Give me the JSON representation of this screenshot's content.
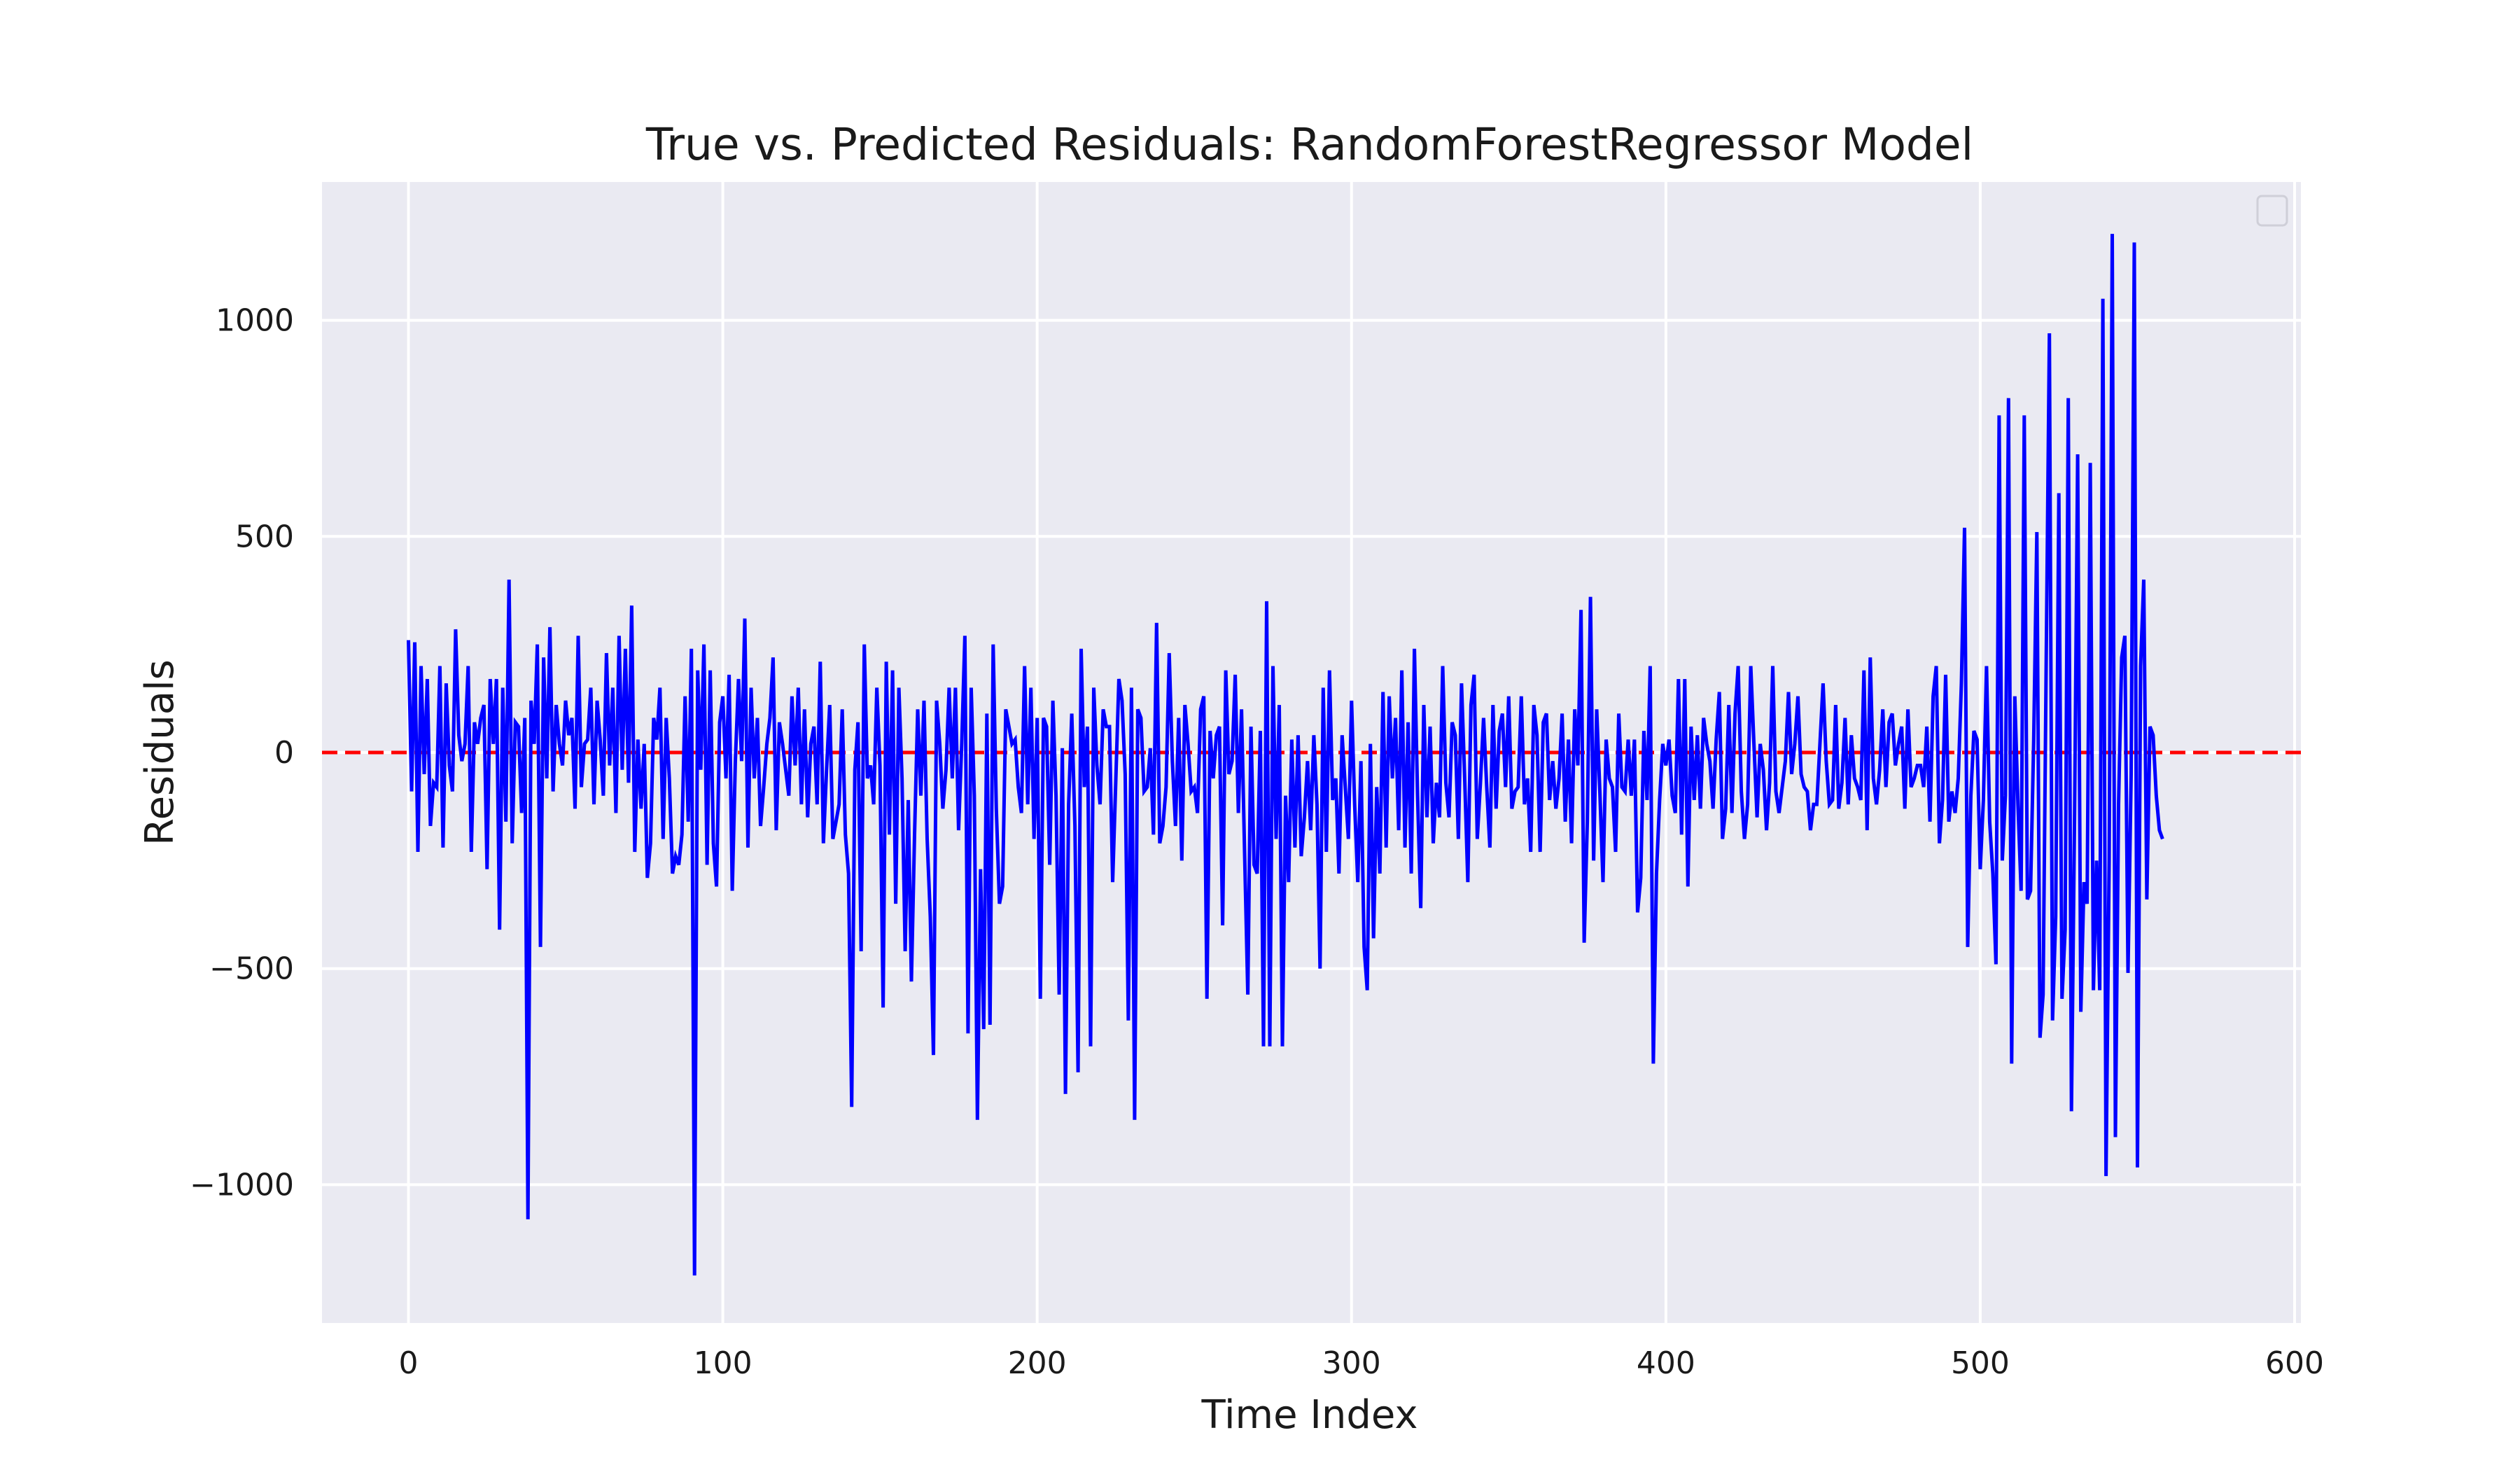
{
  "chart_data": {
    "type": "line",
    "title": "True vs. Predicted Residuals: RandomForestRegressor Model",
    "xlabel": "Time Index",
    "ylabel": "Residuals",
    "xlim": [
      -27.5,
      602
    ],
    "ylim": [
      -1320,
      1320
    ],
    "xticks": [
      0,
      100,
      200,
      300,
      400,
      500,
      600
    ],
    "yticks": [
      -1000,
      -500,
      0,
      500,
      1000
    ],
    "xtick_labels": [
      "0",
      "100",
      "200",
      "300",
      "400",
      "500",
      "600"
    ],
    "ytick_labels": [
      "−1000",
      "−500",
      "0",
      "500",
      "1000"
    ],
    "grid": true,
    "legend": "top-right (empty)",
    "colors": {
      "background": "#eaeaf2",
      "grid": "#ffffff",
      "series": "#0000ff",
      "reference": "#ff0000"
    },
    "reference_line": {
      "y": 0,
      "style": "dashed"
    },
    "series": [
      {
        "values": [
          260,
          -90,
          255,
          -230,
          200,
          -50,
          170,
          -170,
          -70,
          -80,
          200,
          -220,
          160,
          -30,
          -90,
          285,
          40,
          -20,
          20,
          200,
          -230,
          70,
          20,
          80,
          110,
          -270,
          170,
          20,
          170,
          -410,
          150,
          -160,
          400,
          -210,
          70,
          60,
          -140,
          80,
          -1080,
          120,
          20,
          250,
          -450,
          220,
          -60,
          290,
          -90,
          110,
          20,
          -30,
          120,
          40,
          80,
          -130,
          270,
          -80,
          20,
          30,
          150,
          -120,
          120,
          30,
          -100,
          230,
          -30,
          150,
          -140,
          270,
          -40,
          240,
          -70,
          340,
          -230,
          30,
          -130,
          20,
          -290,
          -210,
          80,
          30,
          150,
          -200,
          80,
          -60,
          -280,
          -240,
          -260,
          -190,
          130,
          -160,
          240,
          -1210,
          190,
          -40,
          250,
          -260,
          190,
          -210,
          -310,
          70,
          130,
          -60,
          180,
          -320,
          -20,
          170,
          -20,
          310,
          -220,
          150,
          -60,
          80,
          -170,
          -80,
          20,
          80,
          220,
          -180,
          70,
          20,
          -40,
          -100,
          130,
          -30,
          150,
          -120,
          100,
          -150,
          20,
          60,
          -120,
          210,
          -210,
          -40,
          110,
          -200,
          -160,
          -120,
          100,
          -190,
          -280,
          -820,
          -40,
          70,
          -460,
          250,
          -60,
          -30,
          -120,
          150,
          -30,
          -590,
          210,
          -190,
          190,
          -350,
          150,
          -60,
          -460,
          -110,
          -530,
          -190,
          100,
          -100,
          120,
          -200,
          -380,
          -700,
          120,
          20,
          -130,
          -40,
          150,
          -60,
          150,
          -180,
          20,
          270,
          -650,
          150,
          -100,
          -850,
          -270,
          -640,
          90,
          -630,
          250,
          -130,
          -350,
          -310,
          100,
          60,
          20,
          30,
          -80,
          -140,
          200,
          -120,
          150,
          -200,
          80,
          -570,
          80,
          60,
          -260,
          120,
          -100,
          -560,
          10,
          -790,
          -120,
          90,
          -170,
          -740,
          240,
          -80,
          60,
          -680,
          150,
          -30,
          -120,
          100,
          60,
          60,
          -300,
          -70,
          170,
          120,
          -50,
          -620,
          150,
          -850,
          100,
          80,
          -90,
          -80,
          10,
          -190,
          300,
          -210,
          -170,
          -80,
          230,
          -20,
          -170,
          80,
          -250,
          110,
          20,
          -90,
          -80,
          -140,
          100,
          130,
          -570,
          50,
          -60,
          40,
          60,
          -400,
          190,
          -50,
          -20,
          180,
          -140,
          100,
          -240,
          -560,
          60,
          -260,
          -280,
          50,
          -680,
          350,
          -680,
          200,
          -200,
          110,
          -680,
          -100,
          -300,
          30,
          -220,
          40,
          -240,
          -150,
          -20,
          -180,
          40,
          -120,
          -500,
          150,
          -230,
          190,
          -110,
          -60,
          -280,
          40,
          -80,
          -200,
          120,
          -120,
          -300,
          -20,
          -450,
          -550,
          20,
          -430,
          -80,
          -280,
          140,
          -220,
          130,
          -60,
          80,
          -180,
          190,
          -220,
          70,
          -280,
          240,
          -100,
          -360,
          110,
          -150,
          60,
          -210,
          -70,
          -150,
          200,
          -70,
          -150,
          70,
          40,
          -200,
          160,
          -60,
          -300,
          110,
          180,
          -200,
          -70,
          80,
          -80,
          -220,
          110,
          -130,
          50,
          90,
          -80,
          130,
          -130,
          -90,
          -80,
          130,
          -120,
          -60,
          -230,
          110,
          40,
          -230,
          70,
          90,
          -110,
          -20,
          -130,
          -60,
          90,
          -160,
          30,
          -210,
          100,
          -30,
          330,
          -440,
          -160,
          360,
          -250,
          100,
          -90,
          -300,
          30,
          -60,
          -80,
          -230,
          90,
          -80,
          -90,
          30,
          -100,
          30,
          -370,
          -290,
          50,
          -110,
          200,
          -720,
          -280,
          -110,
          20,
          -30,
          30,
          -100,
          -140,
          170,
          -190,
          170,
          -310,
          60,
          -110,
          40,
          -130,
          80,
          20,
          -20,
          -130,
          30,
          140,
          -200,
          -130,
          110,
          -140,
          90,
          200,
          -90,
          -200,
          -120,
          200,
          20,
          -150,
          20,
          -40,
          -180,
          -70,
          200,
          -90,
          -140,
          -80,
          -20,
          140,
          -50,
          20,
          130,
          -50,
          -80,
          -90,
          -180,
          -120,
          -120,
          20,
          160,
          -20,
          -120,
          -110,
          110,
          -130,
          -70,
          80,
          -120,
          40,
          -60,
          -80,
          -110,
          190,
          -180,
          220,
          -60,
          -120,
          -40,
          100,
          -80,
          70,
          90,
          -30,
          20,
          60,
          -130,
          100,
          -80,
          -60,
          -30,
          -30,
          -80,
          60,
          -160,
          130,
          200,
          -210,
          -110,
          180,
          -160,
          -90,
          -140,
          -60,
          160,
          520,
          -450,
          -100,
          50,
          30,
          -270,
          -110,
          200,
          -160,
          -280,
          -490,
          780,
          -250,
          -100,
          820,
          -720,
          130,
          -120,
          -320,
          780,
          -340,
          -320,
          30,
          510,
          -660,
          -560,
          220,
          970,
          -620,
          -380,
          600,
          -570,
          -410,
          820,
          -830,
          -140,
          690,
          -600,
          -300,
          -350,
          670,
          -550,
          -250,
          -550,
          1050,
          -980,
          -250,
          1200,
          -890,
          -120,
          220,
          270,
          -510,
          -50,
          1180,
          -960,
          200,
          400,
          -340,
          60,
          40,
          -100,
          -180,
          -200
        ]
      }
    ]
  }
}
